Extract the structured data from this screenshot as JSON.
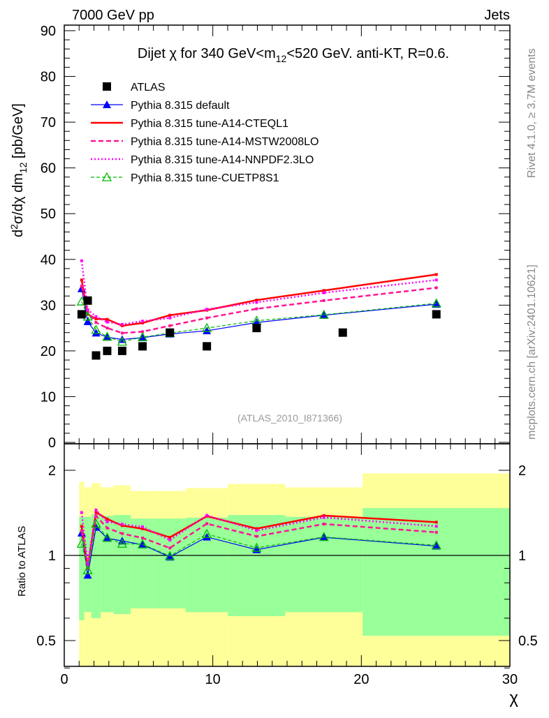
{
  "header": {
    "left": "7000 GeV pp",
    "right": "Jets"
  },
  "side_labels": {
    "rivet": "Rivet 4.1.0, ≥ 3.7M events",
    "mcplots": "mcplots.cern.ch [arXiv:2401.10621]"
  },
  "watermark": "(ATLAS_2010_I871366)",
  "colors": {
    "atlas": "#000000",
    "default": "#0000ff",
    "cteql1": "#ff0000",
    "mstw": "#ff1493",
    "nnpdf": "#ff00ff",
    "cuetp": "#00bb00",
    "band_yellow": "#ffff99",
    "band_green": "#99ff99"
  },
  "chart_data": [
    {
      "type": "line",
      "title": {
        "pre": "Dijet χ for 340 GeV<m",
        "sub": "12",
        "post": "<520 GeV.  anti-KT, R=0.6."
      },
      "ylabel": {
        "a": "d",
        "sup": "2",
        "b": "σ/dχ dm",
        "sub": "12",
        "c": " [pb/GeV]"
      },
      "xlim": [
        0,
        30.5
      ],
      "ylim": [
        0,
        91.2
      ],
      "yticks": [
        "0",
        "10",
        "20",
        "30",
        "40",
        "50",
        "60",
        "70",
        "80",
        "90"
      ],
      "legend_position": "top-left",
      "series": [
        {
          "name": "ATLAS",
          "key": "atlas",
          "style": "square",
          "x": [
            1.17,
            1.58,
            2.14,
            2.89,
            3.9,
            5.27,
            7.11,
            9.6,
            12.95,
            18.75,
            25.05
          ],
          "y": [
            28,
            31,
            19,
            20,
            20,
            21,
            24,
            21,
            25,
            24,
            28
          ]
        },
        {
          "name": "Pythia 8.315 default",
          "key": "default",
          "style": "solid-thin-triangle",
          "x": [
            1.17,
            1.58,
            2.14,
            2.89,
            3.9,
            5.27,
            7.11,
            9.6,
            12.95,
            17.48,
            25.05
          ],
          "y": [
            33.6,
            26.4,
            23.9,
            23.0,
            22.5,
            22.9,
            23.7,
            24.4,
            26.2,
            27.8,
            30.2
          ]
        },
        {
          "name": "Pythia 8.315 tune-A14-CTEQL1",
          "key": "cteql1",
          "style": "solid-thick",
          "x": [
            1.17,
            1.58,
            2.14,
            2.89,
            3.9,
            5.27,
            7.11,
            9.6,
            12.95,
            17.48,
            25.05
          ],
          "y": [
            35.5,
            28.0,
            27.0,
            26.9,
            25.5,
            26.1,
            27.8,
            28.9,
            31.1,
            33.2,
            36.7
          ]
        },
        {
          "name": "Pythia 8.315 tune-A14-MSTW2008LO",
          "key": "mstw",
          "style": "dashed",
          "x": [
            1.17,
            1.58,
            2.14,
            2.89,
            3.9,
            5.27,
            7.11,
            9.6,
            12.95,
            17.48,
            25.05
          ],
          "y": [
            34.2,
            28.5,
            26.2,
            25.0,
            23.9,
            24.2,
            25.5,
            27.2,
            29.2,
            31.0,
            33.8
          ]
        },
        {
          "name": "Pythia 8.315 tune-A14-NNPDF2.3LO",
          "key": "nnpdf",
          "style": "dotted",
          "x": [
            1.17,
            1.58,
            2.14,
            2.89,
            3.9,
            5.27,
            7.11,
            9.6,
            12.95,
            17.48,
            25.05
          ],
          "y": [
            39.7,
            29.0,
            27.5,
            26.3,
            25.8,
            26.5,
            27.2,
            29.1,
            30.6,
            32.7,
            35.5
          ]
        },
        {
          "name": "Pythia 8.315 tune-CUETP8S1",
          "key": "cuetp",
          "style": "dashed-open-triangle",
          "x": [
            1.17,
            1.58,
            2.14,
            2.89,
            3.9,
            5.27,
            7.11,
            9.6,
            12.95,
            17.48,
            25.05
          ],
          "y": [
            30.8,
            27.5,
            24.6,
            23.1,
            22.0,
            23.0,
            23.9,
            25.0,
            26.6,
            27.9,
            30.4
          ]
        }
      ]
    },
    {
      "type": "line",
      "ylabel": "Ratio to ATLAS",
      "xlabel": "χ",
      "xlim": [
        0,
        30.5
      ],
      "ylim": [
        0.4,
        2.5
      ],
      "yscale": "log",
      "xticks": [
        "0",
        "10",
        "20",
        "30"
      ],
      "yticks": [
        "0.5",
        "1",
        "2"
      ],
      "bin_edges": [
        1,
        1.35,
        1.82,
        2.46,
        3.32,
        4.48,
        6.05,
        8.17,
        11.02,
        14.88,
        20.09,
        30
      ],
      "band_total_up": [
        1.82,
        1.74,
        1.8,
        1.74,
        1.77,
        1.69,
        1.69,
        1.73,
        1.79,
        1.74,
        1.95
      ],
      "band_total_down": [
        0.4,
        0.4,
        0.4,
        0.4,
        0.4,
        0.4,
        0.4,
        0.4,
        0.4,
        0.4,
        0.4
      ],
      "band_stat_up": [
        1.37,
        1.37,
        1.4,
        1.38,
        1.39,
        1.35,
        1.35,
        1.36,
        1.39,
        1.37,
        1.47
      ],
      "band_stat_down": [
        0.59,
        0.63,
        0.6,
        0.63,
        0.62,
        0.65,
        0.65,
        0.63,
        0.61,
        0.63,
        0.52
      ],
      "reference": 1
    }
  ]
}
